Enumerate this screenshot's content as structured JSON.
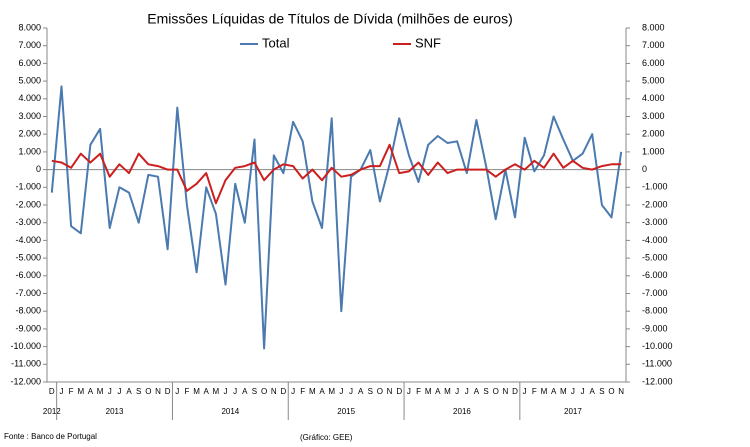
{
  "chart_data": {
    "type": "line",
    "title": "Emissões Líquidas de Títulos de Dívida (milhões de euros)",
    "categories": [
      "D",
      "J",
      "F",
      "M",
      "A",
      "M",
      "J",
      "J",
      "A",
      "S",
      "O",
      "N",
      "D",
      "J",
      "F",
      "M",
      "A",
      "M",
      "J",
      "J",
      "A",
      "S",
      "O",
      "N",
      "D",
      "J",
      "F",
      "M",
      "A",
      "M",
      "J",
      "J",
      "A",
      "S",
      "O",
      "N",
      "D",
      "J",
      "F",
      "M",
      "A",
      "M",
      "J",
      "J",
      "A",
      "S",
      "O",
      "N",
      "D",
      "J",
      "F",
      "M",
      "A",
      "M",
      "J",
      "J",
      "A",
      "S",
      "O",
      "N"
    ],
    "years": [
      "2012",
      "2013",
      "2014",
      "2015",
      "2016",
      "2017"
    ],
    "series": [
      {
        "name": "Total",
        "color": "#4a7ab0",
        "values": [
          -1300,
          4700,
          -3200,
          -3600,
          1400,
          2300,
          -3300,
          -1000,
          -1300,
          -3000,
          -300,
          -400,
          -4500,
          3500,
          -2000,
          -5800,
          -1000,
          -2500,
          -6500,
          -800,
          -3000,
          1700,
          -10100,
          800,
          -200,
          2700,
          1600,
          -1800,
          -3300,
          2900,
          -8000,
          -400,
          0,
          1100,
          -1800,
          300,
          2900,
          800,
          -700,
          1400,
          1900,
          1500,
          1600,
          -200,
          2800,
          200,
          -2800,
          0,
          -2700,
          1800,
          -100,
          800,
          3000,
          1700,
          500,
          900,
          2000,
          -2000,
          -2700,
          1000
        ]
      },
      {
        "name": "SNF",
        "color": "#cc1f1f",
        "values": [
          500,
          400,
          100,
          900,
          400,
          900,
          -400,
          300,
          -200,
          900,
          300,
          200,
          0,
          0,
          -1200,
          -800,
          -200,
          -1900,
          -600,
          100,
          200,
          400,
          -600,
          0,
          300,
          200,
          -500,
          0,
          -600,
          100,
          -400,
          -300,
          0,
          200,
          200,
          1400,
          -200,
          -100,
          400,
          -300,
          400,
          -200,
          0,
          0,
          0,
          0,
          -400,
          0,
          300,
          0,
          500,
          100,
          900,
          100,
          500,
          100,
          0,
          200,
          300,
          300
        ]
      }
    ],
    "ylim": [
      -12000,
      8000
    ],
    "yticks": [
      {
        "value": 8000,
        "label": "8.000"
      },
      {
        "value": 7000,
        "label": "7.000"
      },
      {
        "value": 6000,
        "label": "6.000"
      },
      {
        "value": 5000,
        "label": "5.000"
      },
      {
        "value": 4000,
        "label": "4.000"
      },
      {
        "value": 3000,
        "label": "3.000"
      },
      {
        "value": 2000,
        "label": "2.000"
      },
      {
        "value": 1000,
        "label": "1.000"
      },
      0,
      {
        "value": -1000,
        "label": "-1.000"
      },
      {
        "value": -2000,
        "label": "-2.000"
      },
      {
        "value": -3000,
        "label": "-3.000"
      },
      {
        "value": -4000,
        "label": "-4.000"
      },
      {
        "value": -5000,
        "label": "-5.000"
      },
      {
        "value": -6000,
        "label": "-6.000"
      },
      {
        "value": -7000,
        "label": "-7.000"
      },
      {
        "value": -8000,
        "label": "-8.000"
      },
      {
        "value": -9000,
        "label": "-9.000"
      },
      {
        "value": -10000,
        "label": "-10.000"
      },
      {
        "value": -11000,
        "label": "-11.000"
      },
      {
        "value": -12000,
        "label": "-12.000"
      }
    ],
    "y2lim": [
      -12000,
      8000
    ],
    "y2ticks": [
      {
        "value": 8000,
        "label": "8.000"
      },
      {
        "value": 7000,
        "label": "7.000"
      },
      {
        "value": 6000,
        "label": "6.000"
      },
      {
        "value": 5000,
        "label": "5.000"
      },
      {
        "value": 4000,
        "label": "4.000"
      },
      {
        "value": 3000,
        "label": "3.000"
      },
      {
        "value": 2000,
        "label": "2.000"
      },
      {
        "value": 1000,
        "label": "1.000"
      },
      0,
      {
        "value": -1000,
        "label": "-1.000"
      },
      {
        "value": -2000,
        "label": "-2.000"
      },
      {
        "value": -3000,
        "label": "-3.000"
      },
      {
        "value": -4000,
        "label": "-4.000"
      },
      {
        "value": -5000,
        "label": "-5.000"
      },
      {
        "value": -6000,
        "label": "-6.000"
      },
      {
        "value": -7000,
        "label": "-7.000"
      },
      {
        "value": -8000,
        "label": "-8.000"
      },
      {
        "value": -9000,
        "label": "-9.000"
      },
      {
        "value": -10000,
        "label": "-10.000"
      },
      {
        "value": -11000,
        "label": "-11.000"
      },
      {
        "value": -12000,
        "label": "-12.000"
      }
    ],
    "grid": false,
    "legend": "top",
    "source": "Fonte : Banco de Portugal",
    "credit": "(Gráfico: GEE)"
  }
}
